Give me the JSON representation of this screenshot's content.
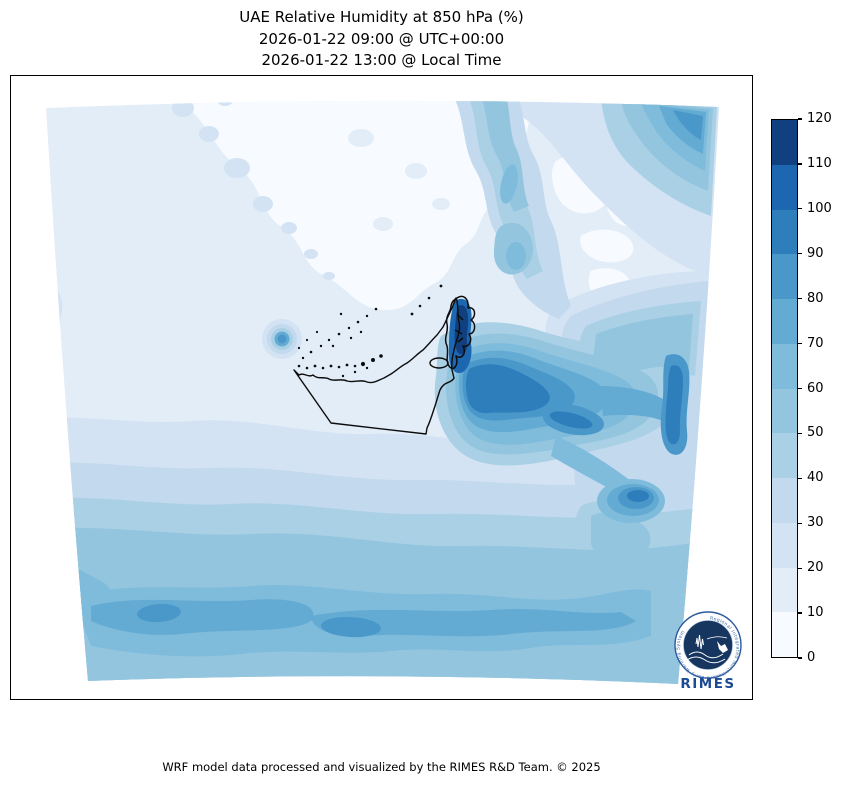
{
  "title": {
    "line1": "UAE Relative Humidity at 850 hPa (%)",
    "line2": "2026-01-22 09:00 @ UTC+00:00",
    "line3": "2026-01-22 13:00 @ Local Time"
  },
  "footer": {
    "credit": "WRF model data processed and visualized by the RIMES R&D Team. © 2025"
  },
  "colorbar": {
    "min": 0,
    "max": 120,
    "step": 10,
    "ticks": [
      0,
      10,
      20,
      30,
      40,
      50,
      60,
      70,
      80,
      90,
      100,
      110,
      120
    ],
    "palette": [
      "#f7fbff",
      "#e2edf8",
      "#d3e3f3",
      "#c3d9ee",
      "#aad0e6",
      "#94c5df",
      "#7fbcdc",
      "#64abd3",
      "#4a98ca",
      "#2f7ebc",
      "#1c67b0",
      "#10407f"
    ]
  },
  "logo": {
    "name": "RIMES",
    "ring_text": "Regional Integrated Multi-Hazard Early Warning System",
    "accent_color": "#1d4a94",
    "disc_color": "#16355f"
  },
  "chart_data": {
    "type": "heatmap",
    "title": "UAE Relative Humidity at 850 hPa (%)",
    "valid_time_utc": "2026-01-22 09:00 @ UTC+00:00",
    "valid_time_local": "2026-01-22 13:00 @ Local Time",
    "variable": "Relative Humidity",
    "pressure_level_hPa": 850,
    "units": "%",
    "colorbar_levels": [
      0,
      10,
      20,
      30,
      40,
      50,
      60,
      70,
      80,
      90,
      100,
      110,
      120
    ],
    "colorbar_colors": [
      "#f7fbff",
      "#e2edf8",
      "#d3e3f3",
      "#c3d9ee",
      "#aad0e6",
      "#94c5df",
      "#7fbcdc",
      "#64abd3",
      "#4a98ca",
      "#2f7ebc",
      "#1c67b0",
      "#10407f"
    ],
    "legend_position": "right",
    "grid": false,
    "map_outline": "United Arab Emirates coastline and borders (black)",
    "regions": [
      {
        "area": "Musandam peninsula / NE UAE mountains",
        "value_range": [
          100,
          120
        ]
      },
      {
        "area": "Gulf of Oman east of UAE",
        "value_range": [
          70,
          100
        ]
      },
      {
        "area": "Eastern domain edge mid-height",
        "value_range": [
          80,
          100
        ]
      },
      {
        "area": "Dark blob near bottom-right (Oman interior)",
        "value_range": [
          80,
          100
        ]
      },
      {
        "area": "Southern domain band (bottom third)",
        "value_range": [
          50,
          80
        ]
      },
      {
        "area": "Southwest corner banded gradient",
        "value_range": [
          20,
          70
        ]
      },
      {
        "area": "Top-right corner patches",
        "value_range": [
          40,
          90
        ]
      },
      {
        "area": "Top-center diagonal band",
        "value_range": [
          30,
          60
        ]
      },
      {
        "area": "Small isolated blob west of UAE",
        "value_range": [
          70,
          90
        ]
      },
      {
        "area": "Persian Gulf / northwest interior",
        "value_range": [
          0,
          20
        ]
      }
    ]
  }
}
